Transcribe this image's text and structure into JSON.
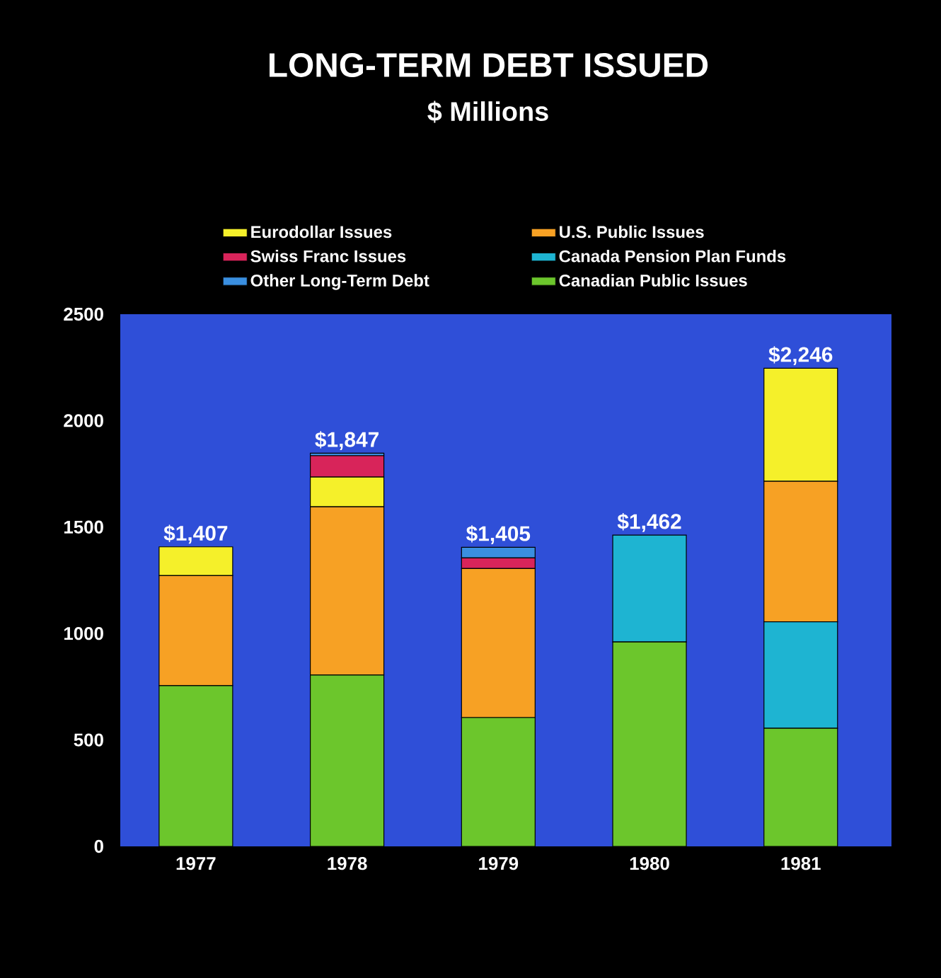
{
  "chart_data": {
    "type": "bar",
    "stacked": true,
    "title": "LONG-TERM DEBT ISSUED",
    "subtitle": "$ Millions",
    "categories": [
      "1977",
      "1978",
      "1979",
      "1980",
      "1981"
    ],
    "series": [
      {
        "name": "Canadian Public Issues",
        "color": "#6cc62c",
        "values": [
          755,
          805,
          605,
          960,
          555
        ]
      },
      {
        "name": "Canada Pension Plan Funds",
        "color": "#1eb4d2",
        "values": [
          0,
          0,
          0,
          502,
          500
        ]
      },
      {
        "name": "U.S. Public Issues",
        "color": "#f7a124",
        "values": [
          517,
          790,
          700,
          0,
          660
        ]
      },
      {
        "name": "Eurodollar Issues",
        "color": "#f5f02a",
        "values": [
          135,
          140,
          0,
          0,
          531
        ]
      },
      {
        "name": "Swiss Franc Issues",
        "color": "#d8245a",
        "values": [
          0,
          100,
          50,
          0,
          0
        ]
      },
      {
        "name": "Other Long-Term Debt",
        "color": "#3a8fe0",
        "values": [
          0,
          12,
          50,
          0,
          0
        ]
      }
    ],
    "totals": [
      "$1,407",
      "$1,847",
      "$1,405",
      "$1,462",
      "$2,246"
    ],
    "ylim": [
      0,
      2500
    ],
    "yticks": [
      0,
      500,
      1000,
      1500,
      2000,
      2500
    ],
    "legend": "top",
    "grid": false
  }
}
